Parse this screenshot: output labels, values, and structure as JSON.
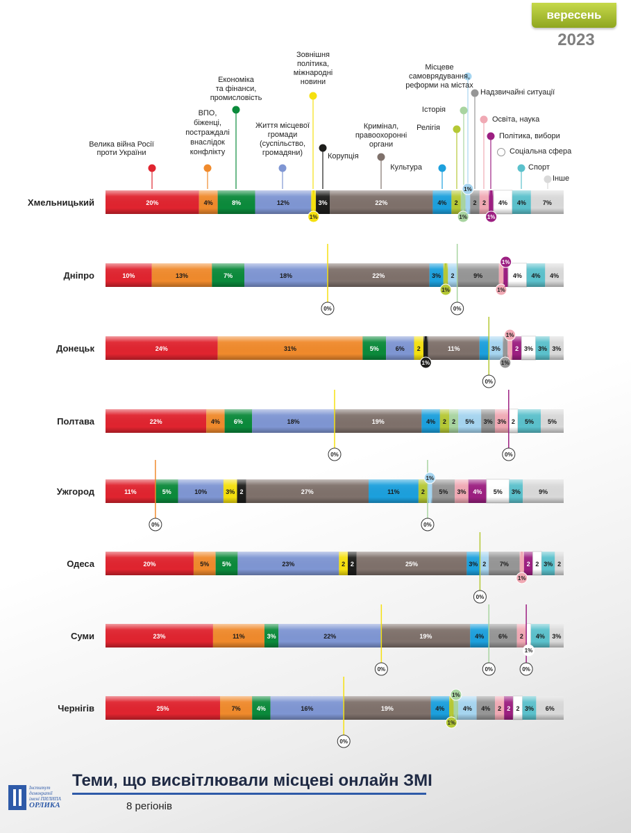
{
  "header": {
    "month": "вересень",
    "year": "2023"
  },
  "footer": {
    "title": "Теми, що висвітлювали місцеві онлайн ЗМІ",
    "subtitle": "8 регіонів"
  },
  "logo": {
    "line1": "Інститут демократії",
    "line2": "імені ПИЛИПА",
    "line3": "ОРЛИКА"
  },
  "colors": {
    "war": "#e0242f",
    "vpo": "#f08a2c",
    "economy": "#0b8a3b",
    "community": "#7f96d3",
    "foreign": "#f5e00f",
    "corruption": "#1d1d1b",
    "crime": "#7f716b",
    "culture": "#1ca0dd",
    "religion": "#b5c835",
    "history": "#a8d4a0",
    "selfgov": "#a6d5f0",
    "emergency": "#969696",
    "education": "#f0a9b4",
    "politics": "#9c1f81",
    "social": "#ffffff",
    "sport": "#5bc1cc",
    "other": "#d9d9d9"
  },
  "chart_data": {
    "type": "bar",
    "orientation": "horizontal-stacked",
    "legend": [
      {
        "key": "war",
        "lines": [
          "Велика війна Росії",
          "проти України"
        ]
      },
      {
        "key": "vpo",
        "lines": [
          "ВПО,",
          "біженці,",
          "постраждалі",
          "внаслідок",
          "конфлікту"
        ]
      },
      {
        "key": "economy",
        "lines": [
          "Економіка",
          "та фінанси,",
          "промисловість"
        ]
      },
      {
        "key": "community",
        "lines": [
          "Життя місцевої",
          "громади",
          "(суспільство,",
          "громадяни)"
        ]
      },
      {
        "key": "foreign",
        "lines": [
          "Зовнішня",
          "політика,",
          "міжнародні",
          "новини"
        ]
      },
      {
        "key": "corruption",
        "lines": [
          "Корупція"
        ]
      },
      {
        "key": "crime",
        "lines": [
          "Кримінал,",
          "правоохоронні",
          "органи"
        ]
      },
      {
        "key": "culture",
        "lines": [
          "Культура"
        ]
      },
      {
        "key": "religion",
        "lines": [
          "Релігія"
        ]
      },
      {
        "key": "history",
        "lines": [
          "Історія"
        ]
      },
      {
        "key": "selfgov",
        "lines": [
          "Місцеве",
          "самоврядування,",
          "реформи на містах"
        ]
      },
      {
        "key": "emergency",
        "lines": [
          "Надзвичайні ситуації"
        ]
      },
      {
        "key": "education",
        "lines": [
          "Освіта, наука"
        ]
      },
      {
        "key": "politics",
        "lines": [
          "Політика, вибори"
        ]
      },
      {
        "key": "social",
        "lines": [
          "Соціальна сфера"
        ]
      },
      {
        "key": "sport",
        "lines": [
          "Спорт"
        ]
      },
      {
        "key": "other",
        "lines": [
          "Інше"
        ]
      }
    ],
    "regions": [
      {
        "name": "Хмельницький",
        "segments": [
          {
            "key": "war",
            "value": 20,
            "label": "20%"
          },
          {
            "key": "vpo",
            "value": 4,
            "label": "4%"
          },
          {
            "key": "economy",
            "value": 8,
            "label": "8%"
          },
          {
            "key": "community",
            "value": 12,
            "label": "12%"
          },
          {
            "key": "foreign",
            "value": 1,
            "label": "1%",
            "marker": "below"
          },
          {
            "key": "corruption",
            "value": 3,
            "label": "3%"
          },
          {
            "key": "crime",
            "value": 22,
            "label": "22%"
          },
          {
            "key": "culture",
            "value": 4,
            "label": "4%"
          },
          {
            "key": "religion",
            "value": 2,
            "label": "2"
          },
          {
            "key": "history",
            "value": 1,
            "label": "1%",
            "marker": "below"
          },
          {
            "key": "selfgov",
            "value": 1,
            "label": "1%",
            "marker": "above"
          },
          {
            "key": "emergency",
            "value": 2,
            "label": "2"
          },
          {
            "key": "education",
            "value": 2,
            "label": "2"
          },
          {
            "key": "politics",
            "value": 1,
            "label": "1%",
            "marker": "below"
          },
          {
            "key": "social",
            "value": 4,
            "label": "4%"
          },
          {
            "key": "sport",
            "value": 4,
            "label": "4%"
          },
          {
            "key": "other",
            "value": 7,
            "label": "7%"
          }
        ]
      },
      {
        "name": "Дніпро",
        "segments": [
          {
            "key": "war",
            "value": 10,
            "label": "10%"
          },
          {
            "key": "vpo",
            "value": 13,
            "label": "13%"
          },
          {
            "key": "economy",
            "value": 7,
            "label": "7%"
          },
          {
            "key": "community",
            "value": 18,
            "label": "18%"
          },
          {
            "key": "foreign",
            "value": 0,
            "label": "0%",
            "marker": "zero"
          },
          {
            "key": "crime",
            "value": 22,
            "label": "22%"
          },
          {
            "key": "culture",
            "value": 3,
            "label": "3%"
          },
          {
            "key": "religion",
            "value": 1,
            "label": "1%",
            "marker": "below"
          },
          {
            "key": "selfgov",
            "value": 2,
            "label": "2"
          },
          {
            "key": "history",
            "value": 0,
            "label": "0%",
            "marker": "zero"
          },
          {
            "key": "emergency",
            "value": 9,
            "label": "9%"
          },
          {
            "key": "education",
            "value": 1,
            "label": "1%",
            "marker": "below"
          },
          {
            "key": "politics",
            "value": 1,
            "label": "1%",
            "marker": "above"
          },
          {
            "key": "social",
            "value": 4,
            "label": "4%"
          },
          {
            "key": "sport",
            "value": 4,
            "label": "4%"
          },
          {
            "key": "other",
            "value": 4,
            "label": "4%"
          }
        ]
      },
      {
        "name": "Донецьк",
        "segments": [
          {
            "key": "war",
            "value": 24,
            "label": "24%"
          },
          {
            "key": "vpo",
            "value": 31,
            "label": "31%"
          },
          {
            "key": "economy",
            "value": 5,
            "label": "5%"
          },
          {
            "key": "community",
            "value": 6,
            "label": "6%"
          },
          {
            "key": "foreign",
            "value": 2,
            "label": "2"
          },
          {
            "key": "corruption",
            "value": 1,
            "label": "1%",
            "marker": "below"
          },
          {
            "key": "crime",
            "value": 11,
            "label": "11%"
          },
          {
            "key": "culture",
            "value": 2,
            "label": ""
          },
          {
            "key": "religion",
            "value": 0,
            "label": "0%",
            "marker": "zero"
          },
          {
            "key": "selfgov",
            "value": 3,
            "label": "3%"
          },
          {
            "key": "emergency",
            "value": 1,
            "label": "1%",
            "marker": "below"
          },
          {
            "key": "education",
            "value": 1,
            "label": "1%",
            "marker": "above"
          },
          {
            "key": "politics",
            "value": 2,
            "label": "2"
          },
          {
            "key": "social",
            "value": 3,
            "label": "3%"
          },
          {
            "key": "sport",
            "value": 3,
            "label": "3%"
          },
          {
            "key": "other",
            "value": 3,
            "label": "3%"
          }
        ]
      },
      {
        "name": "Полтава",
        "segments": [
          {
            "key": "war",
            "value": 22,
            "label": "22%"
          },
          {
            "key": "vpo",
            "value": 4,
            "label": "4%"
          },
          {
            "key": "economy",
            "value": 6,
            "label": "6%"
          },
          {
            "key": "community",
            "value": 18,
            "label": "18%"
          },
          {
            "key": "foreign",
            "value": 0,
            "label": "0%",
            "marker": "zero"
          },
          {
            "key": "crime",
            "value": 19,
            "label": "19%"
          },
          {
            "key": "culture",
            "value": 4,
            "label": "4%"
          },
          {
            "key": "religion",
            "value": 2,
            "label": "2"
          },
          {
            "key": "history",
            "value": 2,
            "label": "2"
          },
          {
            "key": "selfgov",
            "value": 5,
            "label": "5%"
          },
          {
            "key": "emergency",
            "value": 3,
            "label": "3%"
          },
          {
            "key": "education",
            "value": 3,
            "label": "3%"
          },
          {
            "key": "politics",
            "value": 0,
            "label": "0%",
            "marker": "zero"
          },
          {
            "key": "social",
            "value": 2,
            "label": "2"
          },
          {
            "key": "sport",
            "value": 5,
            "label": "5%"
          },
          {
            "key": "other",
            "value": 5,
            "label": "5%"
          }
        ]
      },
      {
        "name": "Ужгород",
        "segments": [
          {
            "key": "war",
            "value": 11,
            "label": "11%"
          },
          {
            "key": "vpo",
            "value": 0,
            "label": "0%",
            "marker": "zero"
          },
          {
            "key": "economy",
            "value": 5,
            "label": "5%"
          },
          {
            "key": "community",
            "value": 10,
            "label": "10%"
          },
          {
            "key": "foreign",
            "value": 3,
            "label": "3%"
          },
          {
            "key": "corruption",
            "value": 2,
            "label": "2"
          },
          {
            "key": "crime",
            "value": 27,
            "label": "27%"
          },
          {
            "key": "culture",
            "value": 11,
            "label": "11%"
          },
          {
            "key": "religion",
            "value": 2,
            "label": "2"
          },
          {
            "key": "history",
            "value": 0,
            "label": "0%",
            "marker": "zero"
          },
          {
            "key": "selfgov",
            "value": 1,
            "label": "1%",
            "marker": "above"
          },
          {
            "key": "emergency",
            "value": 5,
            "label": "5%"
          },
          {
            "key": "education",
            "value": 3,
            "label": "3%"
          },
          {
            "key": "politics",
            "value": 4,
            "label": "4%"
          },
          {
            "key": "social",
            "value": 5,
            "label": "5%"
          },
          {
            "key": "sport",
            "value": 3,
            "label": "3%"
          },
          {
            "key": "other",
            "value": 9,
            "label": "9%"
          }
        ]
      },
      {
        "name": "Одеса",
        "segments": [
          {
            "key": "war",
            "value": 20,
            "label": "20%"
          },
          {
            "key": "vpo",
            "value": 5,
            "label": "5%"
          },
          {
            "key": "economy",
            "value": 5,
            "label": "5%"
          },
          {
            "key": "community",
            "value": 23,
            "label": "23%"
          },
          {
            "key": "foreign",
            "value": 2,
            "label": "2"
          },
          {
            "key": "corruption",
            "value": 2,
            "label": "2"
          },
          {
            "key": "crime",
            "value": 25,
            "label": "25%"
          },
          {
            "key": "culture",
            "value": 3,
            "label": "3%"
          },
          {
            "key": "religion",
            "value": 0,
            "label": "0%",
            "marker": "zero"
          },
          {
            "key": "selfgov",
            "value": 2,
            "label": "2"
          },
          {
            "key": "emergency",
            "value": 7,
            "label": "7%"
          },
          {
            "key": "education",
            "value": 1,
            "label": "1%",
            "marker": "below"
          },
          {
            "key": "politics",
            "value": 2,
            "label": "2"
          },
          {
            "key": "social",
            "value": 2,
            "label": "2"
          },
          {
            "key": "sport",
            "value": 3,
            "label": "3%"
          },
          {
            "key": "other",
            "value": 2,
            "label": "2"
          }
        ]
      },
      {
        "name": "Суми",
        "segments": [
          {
            "key": "war",
            "value": 23,
            "label": "23%"
          },
          {
            "key": "vpo",
            "value": 11,
            "label": "11%"
          },
          {
            "key": "economy",
            "value": 3,
            "label": "3%"
          },
          {
            "key": "community",
            "value": 22,
            "label": "22%"
          },
          {
            "key": "foreign",
            "value": 0,
            "label": "0%",
            "marker": "zero"
          },
          {
            "key": "crime",
            "value": 19,
            "label": "19%"
          },
          {
            "key": "culture",
            "value": 4,
            "label": "4%"
          },
          {
            "key": "history",
            "value": 0,
            "label": "0%",
            "marker": "zero"
          },
          {
            "key": "emergency",
            "value": 6,
            "label": "6%"
          },
          {
            "key": "education",
            "value": 2,
            "label": "2"
          },
          {
            "key": "politics",
            "value": 0,
            "label": "0%",
            "marker": "zero"
          },
          {
            "key": "social",
            "value": 1,
            "label": "1%",
            "marker": "below"
          },
          {
            "key": "sport",
            "value": 4,
            "label": "4%"
          },
          {
            "key": "other",
            "value": 3,
            "label": "3%"
          }
        ]
      },
      {
        "name": "Чернігів",
        "segments": [
          {
            "key": "war",
            "value": 25,
            "label": "25%"
          },
          {
            "key": "vpo",
            "value": 7,
            "label": "7%"
          },
          {
            "key": "economy",
            "value": 4,
            "label": "4%"
          },
          {
            "key": "community",
            "value": 16,
            "label": "16%"
          },
          {
            "key": "foreign",
            "value": 0,
            "label": "0%",
            "marker": "zero"
          },
          {
            "key": "crime",
            "value": 19,
            "label": "19%"
          },
          {
            "key": "culture",
            "value": 4,
            "label": "4%"
          },
          {
            "key": "religion",
            "value": 1,
            "label": "1%",
            "marker": "below"
          },
          {
            "key": "history",
            "value": 1,
            "label": "1%",
            "marker": "above"
          },
          {
            "key": "selfgov",
            "value": 4,
            "label": "4%"
          },
          {
            "key": "emergency",
            "value": 4,
            "label": "4%"
          },
          {
            "key": "education",
            "value": 2,
            "label": "2"
          },
          {
            "key": "politics",
            "value": 2,
            "label": "2"
          },
          {
            "key": "social",
            "value": 2,
            "label": "2"
          },
          {
            "key": "sport",
            "value": 3,
            "label": "3%"
          },
          {
            "key": "other",
            "value": 6,
            "label": "6%"
          }
        ]
      }
    ]
  }
}
